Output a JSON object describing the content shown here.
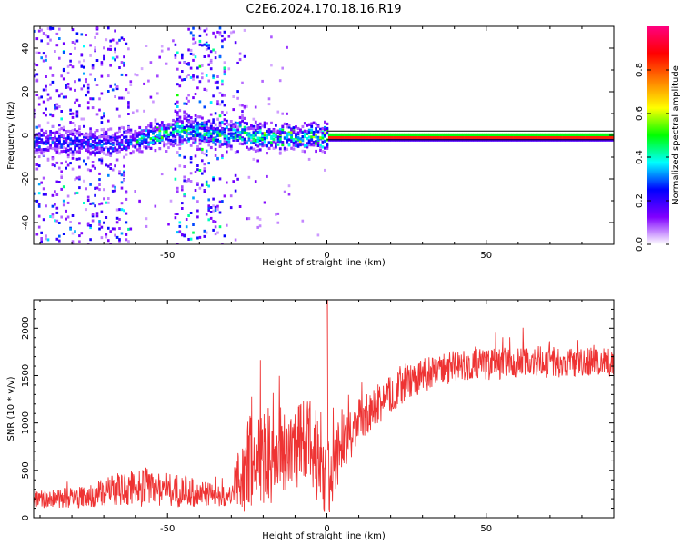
{
  "figure": {
    "title": "C2E6.2024.170.18.16.R19"
  },
  "chart_data": [
    {
      "type": "heatmap",
      "xlabel": "Height of straight line (km)",
      "ylabel": "Frequency (Hz)",
      "xlim": [
        -92,
        90
      ],
      "ylim": [
        -50,
        50
      ],
      "xticks": [
        -50,
        0,
        50
      ],
      "yticks": [
        -40,
        -20,
        0,
        20,
        40
      ],
      "colorbar": {
        "label": "Normalized spectral amplitude",
        "ticks": [
          "0.0",
          "0.2",
          "0.4",
          "0.6",
          "0.8"
        ],
        "tick_values": [
          0.0,
          0.2,
          0.4,
          0.6,
          0.8
        ],
        "range": [
          0,
          1
        ],
        "colors": [
          "#ffffff",
          "#8000ff",
          "#0000ff",
          "#00ffff",
          "#00ff00",
          "#ffff00",
          "#ff8000",
          "#ff0000",
          "#ff0080"
        ]
      },
      "ridge": [
        {
          "x": -80,
          "y": -2
        },
        {
          "x": -70,
          "y": -3
        },
        {
          "x": -60,
          "y": -1
        },
        {
          "x": -50,
          "y": 2
        },
        {
          "x": -45,
          "y": 4
        },
        {
          "x": -35,
          "y": 1
        },
        {
          "x": -28,
          "y": 2
        },
        {
          "x": -20,
          "y": 0
        },
        {
          "x": -10,
          "y": 0
        },
        {
          "x": 0,
          "y": 0
        },
        {
          "x": 90,
          "y": 0
        }
      ],
      "grid": false,
      "colors": {
        "axis": "#000000"
      }
    },
    {
      "type": "line",
      "xlabel": "Height of straight line (km)",
      "ylabel": "SNR (10 * v/v)",
      "xlim": [
        -92,
        90
      ],
      "ylim": [
        0,
        2300
      ],
      "xticks": [
        -50,
        0,
        50
      ],
      "yticks": [
        0,
        500,
        1000,
        1500,
        2000
      ],
      "series": [
        {
          "color": "#ee3333",
          "x": [
            -92,
            -85,
            -80,
            -75,
            -70,
            -65,
            -60,
            -55,
            -50,
            -45,
            -40,
            -35,
            -30,
            -28,
            -25,
            -20,
            -15,
            -10,
            -5,
            -2,
            0,
            2,
            5,
            10,
            15,
            20,
            25,
            30,
            35,
            40,
            45,
            50,
            55,
            60,
            65,
            70,
            75,
            80,
            85,
            90
          ],
          "mean": [
            190,
            200,
            210,
            220,
            260,
            300,
            330,
            320,
            300,
            280,
            260,
            240,
            220,
            400,
            550,
            650,
            700,
            750,
            800,
            700,
            300,
            600,
            800,
            1000,
            1150,
            1300,
            1420,
            1500,
            1560,
            1590,
            1610,
            1620,
            1630,
            1640,
            1640,
            1650,
            1650,
            1650,
            1650,
            1650
          ],
          "spread": [
            90,
            100,
            110,
            120,
            150,
            180,
            220,
            200,
            190,
            170,
            140,
            120,
            100,
            350,
            500,
            550,
            500,
            450,
            500,
            600,
            500,
            400,
            300,
            250,
            220,
            200,
            190,
            180,
            170,
            170,
            170,
            170,
            170,
            170,
            170,
            170,
            170,
            170,
            170,
            170
          ]
        }
      ],
      "grid": false
    }
  ]
}
